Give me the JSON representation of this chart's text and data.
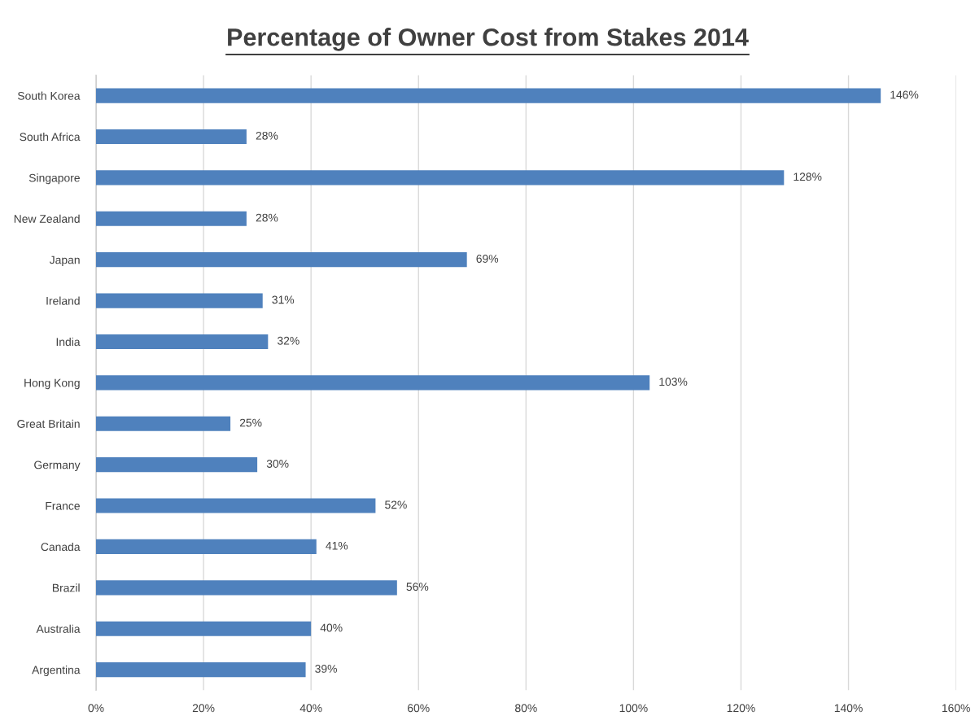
{
  "chart_data": {
    "type": "bar",
    "orientation": "horizontal",
    "title": "Percentage of Owner Cost from Stakes 2014",
    "categories": [
      "South Korea",
      "South Africa",
      "Singapore",
      "New Zealand",
      "Japan",
      "Ireland",
      "India",
      "Hong Kong",
      "Great Britain",
      "Germany",
      "France",
      "Canada",
      "Brazil",
      "Australia",
      "Argentina"
    ],
    "values": [
      146,
      28,
      128,
      28,
      69,
      31,
      32,
      103,
      25,
      30,
      52,
      41,
      56,
      40,
      39
    ],
    "value_labels": [
      "146%",
      "28%",
      "128%",
      "28%",
      "69%",
      "31%",
      "32%",
      "103%",
      "25%",
      "30%",
      "52%",
      "41%",
      "56%",
      "40%",
      "39%"
    ],
    "color": "#4f81bd",
    "xlim": [
      0,
      160
    ],
    "xticks": [
      {
        "value": 0,
        "label": "0%"
      },
      {
        "value": 20,
        "label": "20%"
      },
      {
        "value": 40,
        "label": "40%"
      },
      {
        "value": 60,
        "label": "60%"
      },
      {
        "value": 80,
        "label": "80%"
      },
      {
        "value": 100,
        "label": "100%"
      },
      {
        "value": 120,
        "label": "120%"
      },
      {
        "value": 140,
        "label": "140%"
      },
      {
        "value": 160,
        "label": "160%"
      }
    ],
    "grid": "x"
  }
}
